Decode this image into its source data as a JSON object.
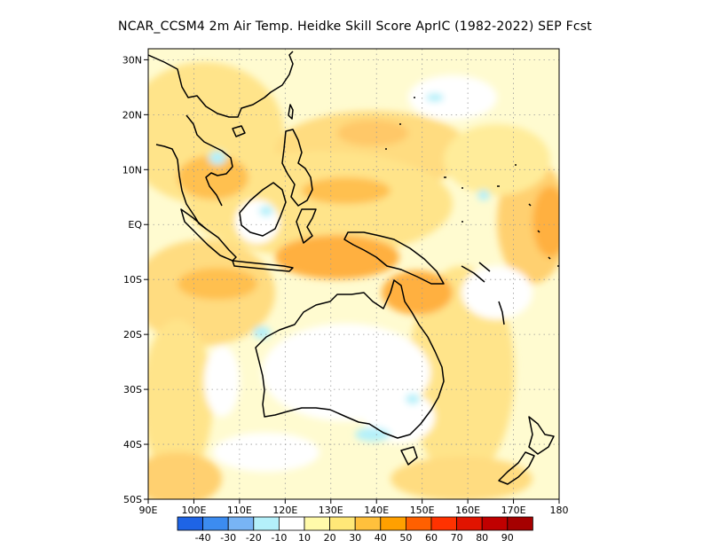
{
  "title": "NCAR_CCSM4  2m Air Temp. Heidke Skill Score AprIC (1982-2022) SEP Fcst",
  "map": {
    "lon_range": [
      90,
      180
    ],
    "lat_range": [
      -50,
      32
    ],
    "lat_labels": [
      "30N",
      "20N",
      "10N",
      "EQ",
      "10S",
      "20S",
      "30S",
      "40S",
      "50S"
    ],
    "lat_values": [
      30,
      20,
      10,
      0,
      -10,
      -20,
      -30,
      -40,
      -50
    ],
    "lon_labels": [
      "90E",
      "100E",
      "110E",
      "120E",
      "130E",
      "140E",
      "150E",
      "160E",
      "170E",
      "180"
    ],
    "lon_values": [
      90,
      100,
      110,
      120,
      130,
      140,
      150,
      160,
      170,
      180
    ],
    "grid": true
  },
  "colorbar": {
    "labels": [
      "-40",
      "-30",
      "-20",
      "-10",
      "10",
      "20",
      "30",
      "40",
      "50",
      "60",
      "70",
      "80",
      "90"
    ],
    "colors": [
      "#1e64e6",
      "#3c8cf0",
      "#78b4f5",
      "#b4f0fa",
      "#ffffff",
      "#fffaaa",
      "#ffe878",
      "#ffc03c",
      "#ffa000",
      "#ff6000",
      "#ff3200",
      "#e11400",
      "#c00000",
      "#a50000"
    ]
  }
}
